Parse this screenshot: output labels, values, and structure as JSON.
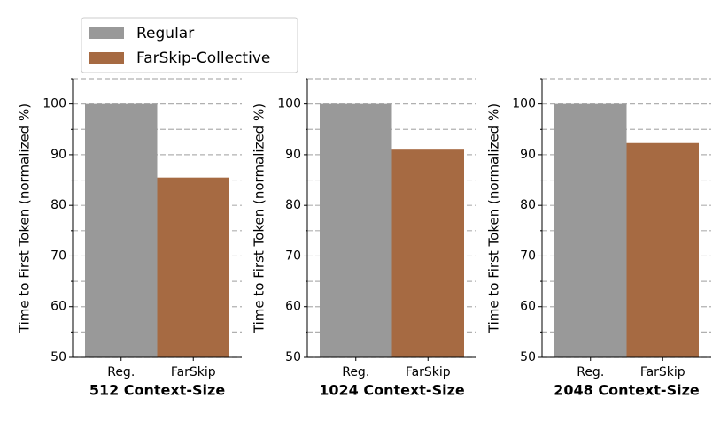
{
  "legend": [
    {
      "name": "Regular",
      "color": "#999999"
    },
    {
      "name": "FarSkip-Collective",
      "color": "#a66a42"
    }
  ],
  "chart_data": [
    {
      "type": "bar",
      "xlabel": "512 Context-Size",
      "ylabel": "Time to First Token (normalized %)",
      "categories": [
        "Reg.",
        "FarSkip"
      ],
      "values": [
        100,
        85.5
      ],
      "colors": [
        "#999999",
        "#a66a42"
      ],
      "ylim": [
        50,
        105
      ],
      "yticks": [
        50,
        60,
        70,
        80,
        90,
        100
      ],
      "minor_yticks": [
        55,
        65,
        75,
        85,
        95,
        105
      ],
      "grid": true
    },
    {
      "type": "bar",
      "xlabel": "1024 Context-Size",
      "ylabel": "Time to First Token (normalized %)",
      "categories": [
        "Reg.",
        "FarSkip"
      ],
      "values": [
        100,
        91
      ],
      "colors": [
        "#999999",
        "#a66a42"
      ],
      "ylim": [
        50,
        105
      ],
      "yticks": [
        50,
        60,
        70,
        80,
        90,
        100
      ],
      "minor_yticks": [
        55,
        65,
        75,
        85,
        95,
        105
      ],
      "grid": true
    },
    {
      "type": "bar",
      "xlabel": "2048 Context-Size",
      "ylabel": "Time to First Token (normalized %)",
      "categories": [
        "Reg.",
        "FarSkip"
      ],
      "values": [
        100,
        92.3
      ],
      "colors": [
        "#999999",
        "#a66a42"
      ],
      "ylim": [
        50,
        105
      ],
      "yticks": [
        50,
        60,
        70,
        80,
        90,
        100
      ],
      "minor_yticks": [
        55,
        65,
        75,
        85,
        95,
        105
      ],
      "grid": true
    }
  ]
}
